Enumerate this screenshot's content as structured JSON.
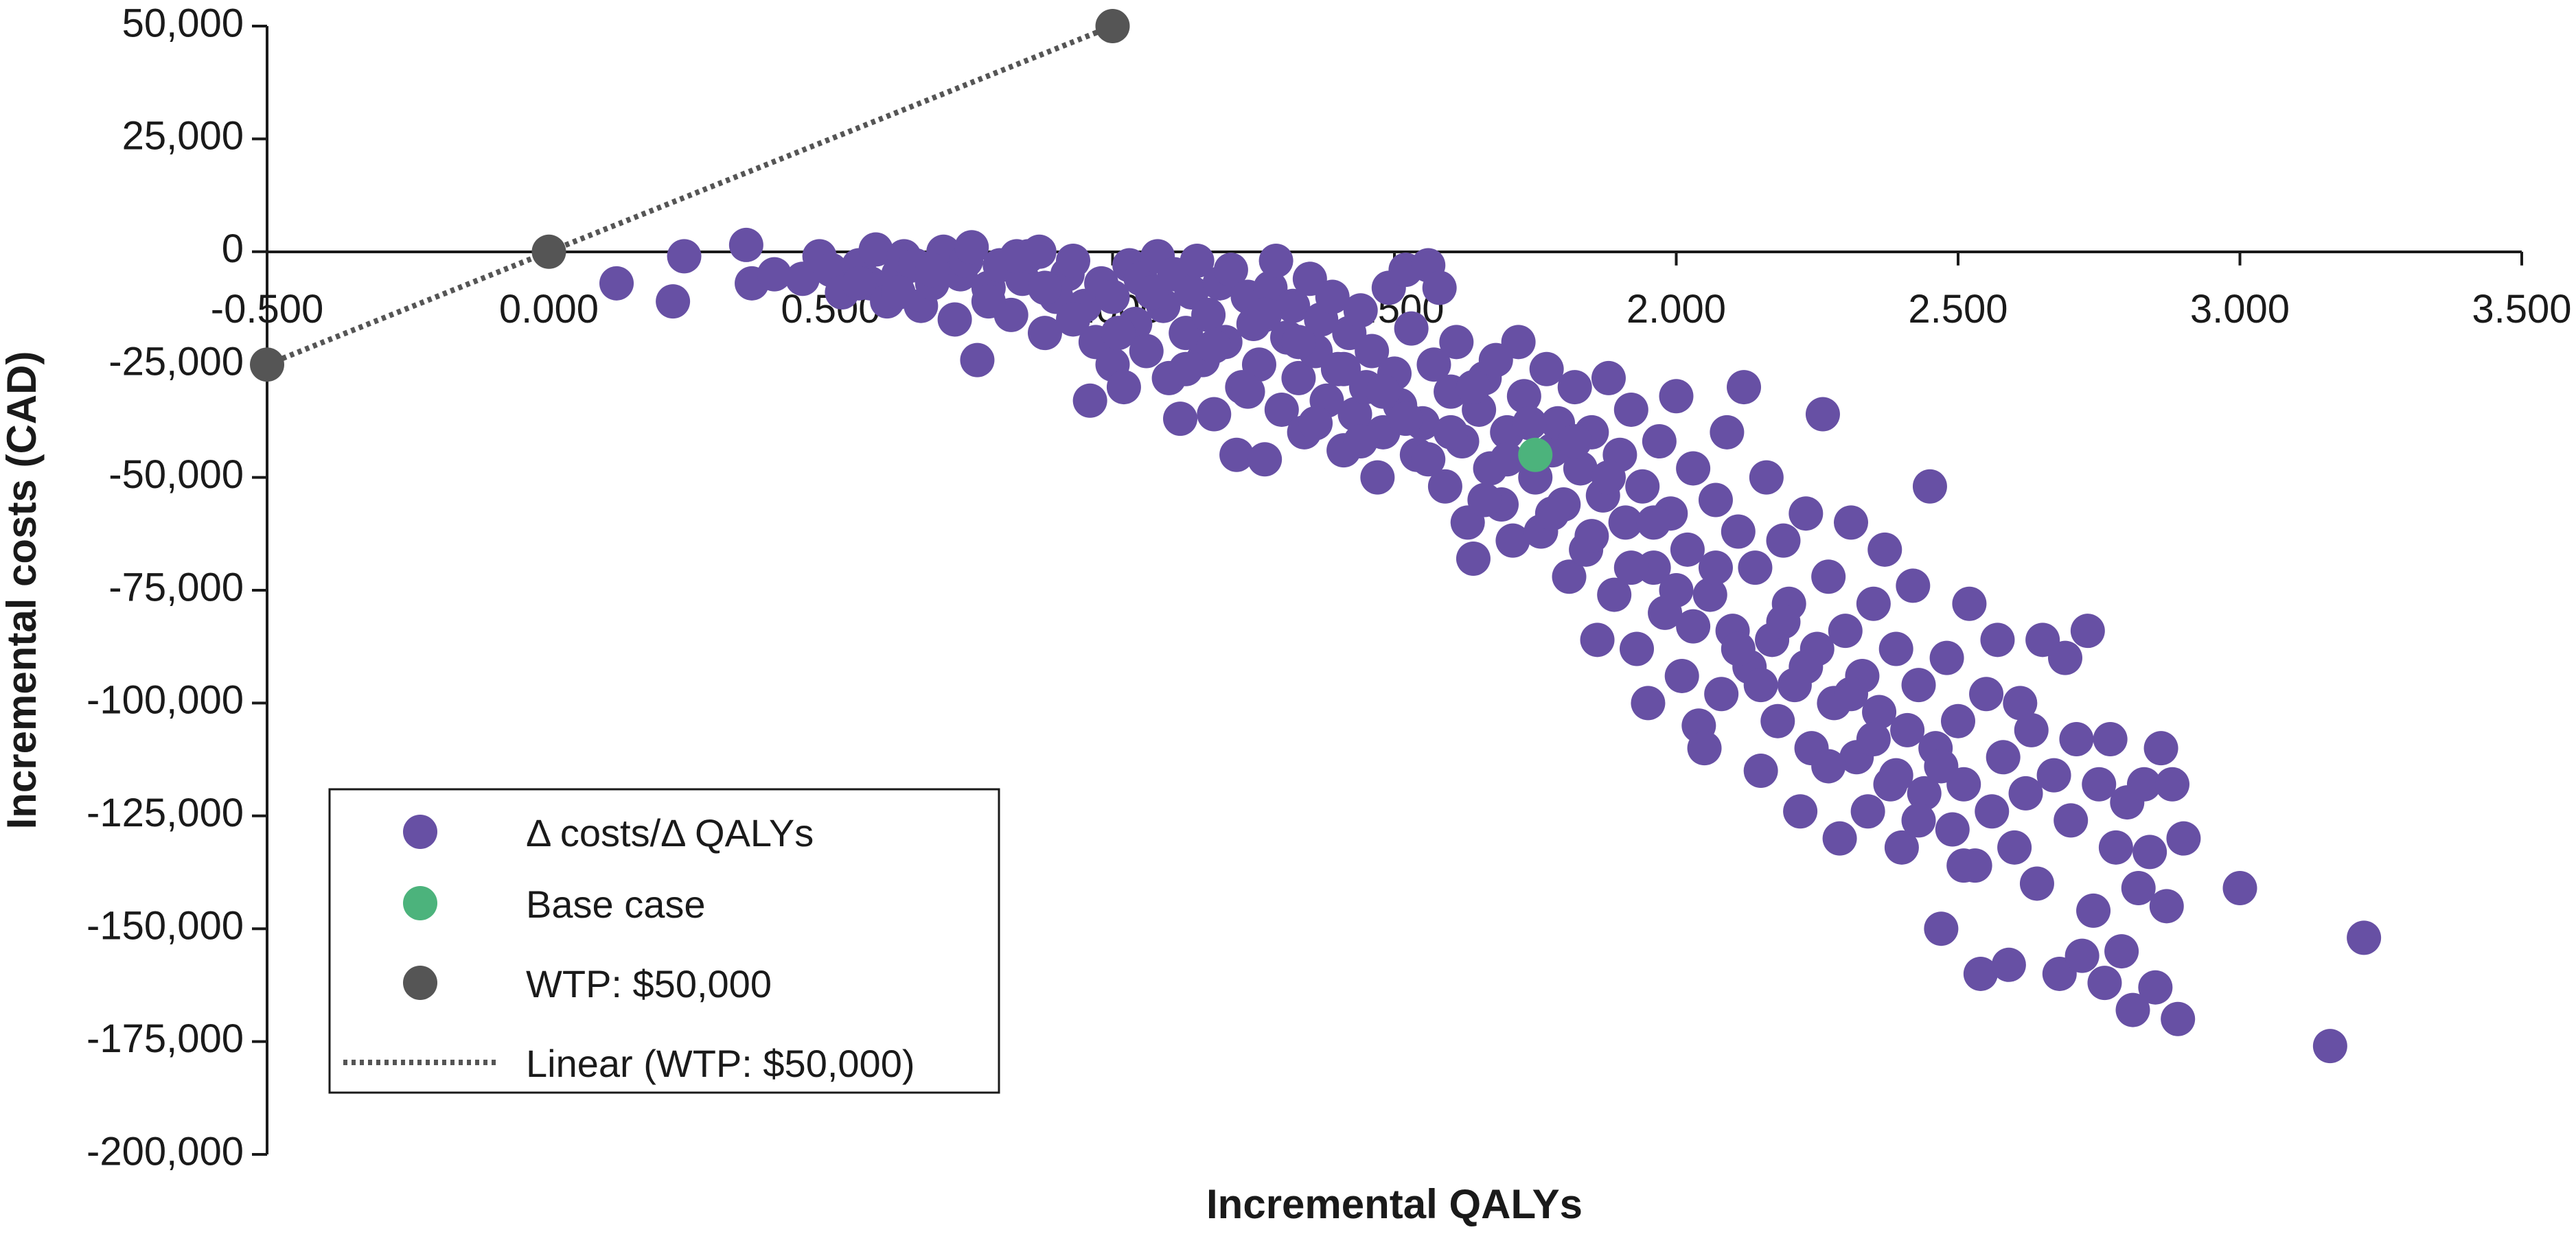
{
  "chart_data": {
    "type": "scatter",
    "xlabel": "Incremental QALYs",
    "ylabel": "Incremental costs (CAD)",
    "xlim": [
      -0.5,
      3.5
    ],
    "ylim": [
      -200000,
      50000
    ],
    "x_ticks": [
      -0.5,
      0,
      0.5,
      1,
      1.5,
      2,
      2.5,
      3,
      3.5
    ],
    "x_tick_labels": [
      "-0.500",
      "0.000",
      "0.500",
      "1.000",
      "1.500",
      "2.000",
      "2.500",
      "3.000",
      "3.500"
    ],
    "y_ticks": [
      50000,
      25000,
      0,
      -25000,
      -50000,
      -75000,
      -100000,
      -125000,
      -150000,
      -175000,
      -200000
    ],
    "y_tick_labels": [
      "50,000",
      "25,000",
      "0",
      "-25,000",
      "-50,000",
      "-75,000",
      "-100,000",
      "-125,000",
      "-150,000",
      "-175,000",
      "-200,000"
    ],
    "colors": {
      "psa": "#6750a4",
      "base": "#4cb37c",
      "wtp": "#555555",
      "axis": "#1a1a1a"
    },
    "legend_position": "bottom-left",
    "series": [
      {
        "name": "Δ costs/Δ QALYs",
        "kind": "scatter",
        "points": [
          [
            0.12,
            -7000
          ],
          [
            0.22,
            -11000
          ],
          [
            0.24,
            -1000
          ],
          [
            0.35,
            1500
          ],
          [
            0.36,
            -7000
          ],
          [
            0.4,
            -5000
          ],
          [
            0.45,
            -6000
          ],
          [
            0.48,
            -1000
          ],
          [
            0.5,
            -4000
          ],
          [
            0.52,
            -9000
          ],
          [
            0.55,
            -3000
          ],
          [
            0.57,
            -7000
          ],
          [
            0.58,
            500
          ],
          [
            0.6,
            -11000
          ],
          [
            0.62,
            -5000
          ],
          [
            0.63,
            -1000
          ],
          [
            0.65,
            -3000
          ],
          [
            0.66,
            -12000
          ],
          [
            0.68,
            -7000
          ],
          [
            0.7,
            0
          ],
          [
            0.72,
            -15000
          ],
          [
            0.73,
            -5000
          ],
          [
            0.74,
            -2000
          ],
          [
            0.75,
            1000
          ],
          [
            0.76,
            -24000
          ],
          [
            0.78,
            -8000
          ],
          [
            0.8,
            -3000
          ],
          [
            0.82,
            -14000
          ],
          [
            0.84,
            -6000
          ],
          [
            0.85,
            -1000
          ],
          [
            0.87,
            0
          ],
          [
            0.88,
            -18000
          ],
          [
            0.9,
            -10000
          ],
          [
            0.92,
            -5000
          ],
          [
            0.93,
            -2000
          ],
          [
            0.95,
            -12000
          ],
          [
            0.96,
            -33000
          ],
          [
            0.97,
            -20000
          ],
          [
            0.98,
            -7000
          ],
          [
            1.0,
            -25000
          ],
          [
            1.0,
            -10000
          ],
          [
            1.02,
            -30000
          ],
          [
            1.03,
            -3000
          ],
          [
            1.04,
            -16000
          ],
          [
            1.05,
            -6000
          ],
          [
            1.06,
            -22000
          ],
          [
            1.08,
            -1000
          ],
          [
            1.09,
            -12000
          ],
          [
            1.1,
            -28000
          ],
          [
            1.11,
            -5000
          ],
          [
            1.12,
            -37000
          ],
          [
            1.13,
            -18000
          ],
          [
            1.14,
            -9000
          ],
          [
            1.15,
            -2000
          ],
          [
            1.16,
            -24000
          ],
          [
            1.17,
            -14000
          ],
          [
            1.18,
            -36000
          ],
          [
            1.19,
            -7000
          ],
          [
            1.2,
            -20000
          ],
          [
            1.21,
            -4000
          ],
          [
            1.22,
            -45000
          ],
          [
            1.23,
            -30000
          ],
          [
            1.24,
            -10000
          ],
          [
            1.25,
            -16000
          ],
          [
            1.26,
            -25000
          ],
          [
            1.27,
            -46000
          ],
          [
            1.28,
            -8000
          ],
          [
            1.29,
            -2000
          ],
          [
            1.3,
            -35000
          ],
          [
            1.31,
            -19000
          ],
          [
            1.32,
            -12000
          ],
          [
            1.33,
            -28000
          ],
          [
            1.34,
            -40000
          ],
          [
            1.35,
            -6000
          ],
          [
            1.36,
            -22000
          ],
          [
            1.37,
            -15000
          ],
          [
            1.38,
            -33000
          ],
          [
            1.39,
            -10000
          ],
          [
            1.4,
            -26000
          ],
          [
            1.41,
            -44000
          ],
          [
            1.42,
            -18000
          ],
          [
            1.43,
            -36000
          ],
          [
            1.44,
            -13000
          ],
          [
            1.45,
            -30000
          ],
          [
            1.46,
            -22000
          ],
          [
            1.47,
            -50000
          ],
          [
            1.48,
            -40000
          ],
          [
            1.49,
            -8000
          ],
          [
            1.5,
            -27000
          ],
          [
            1.51,
            -34000
          ],
          [
            1.52,
            -4000
          ],
          [
            1.53,
            -17000
          ],
          [
            1.54,
            -45000
          ],
          [
            1.55,
            -38000
          ],
          [
            1.56,
            -3000
          ],
          [
            1.57,
            -25000
          ],
          [
            1.58,
            -8000
          ],
          [
            1.59,
            -52000
          ],
          [
            1.6,
            -31000
          ],
          [
            1.61,
            -20000
          ],
          [
            1.62,
            -42000
          ],
          [
            1.63,
            -60000
          ],
          [
            1.64,
            -68000
          ],
          [
            1.65,
            -35000
          ],
          [
            1.66,
            -28000
          ],
          [
            1.67,
            -48000
          ],
          [
            1.68,
            -24000
          ],
          [
            1.69,
            -56000
          ],
          [
            1.7,
            -40000
          ],
          [
            1.71,
            -64000
          ],
          [
            1.72,
            -20000
          ],
          [
            1.73,
            -32000
          ],
          [
            1.75,
            -50000
          ],
          [
            1.76,
            -62000
          ],
          [
            1.77,
            -26000
          ],
          [
            1.78,
            -44000
          ],
          [
            1.79,
            -38000
          ],
          [
            1.8,
            -56000
          ],
          [
            1.81,
            -72000
          ],
          [
            1.82,
            -30000
          ],
          [
            1.83,
            -48000
          ],
          [
            1.84,
            -66000
          ],
          [
            1.85,
            -40000
          ],
          [
            1.86,
            -86000
          ],
          [
            1.87,
            -54000
          ],
          [
            1.88,
            -28000
          ],
          [
            1.89,
            -76000
          ],
          [
            1.9,
            -45000
          ],
          [
            1.91,
            -60000
          ],
          [
            1.92,
            -35000
          ],
          [
            1.93,
            -88000
          ],
          [
            1.94,
            -52000
          ],
          [
            1.95,
            -100000
          ],
          [
            1.96,
            -70000
          ],
          [
            1.97,
            -42000
          ],
          [
            1.98,
            -80000
          ],
          [
            1.99,
            -58000
          ],
          [
            2.0,
            -32000
          ],
          [
            2.01,
            -94000
          ],
          [
            2.02,
            -66000
          ],
          [
            2.03,
            -48000
          ],
          [
            2.04,
            -105000
          ],
          [
            2.05,
            -110000
          ],
          [
            2.06,
            -76000
          ],
          [
            2.07,
            -55000
          ],
          [
            2.08,
            -98000
          ],
          [
            2.09,
            -40000
          ],
          [
            2.1,
            -84000
          ],
          [
            2.11,
            -62000
          ],
          [
            2.12,
            -30000
          ],
          [
            2.13,
            -92000
          ],
          [
            2.14,
            -70000
          ],
          [
            2.15,
            -115000
          ],
          [
            2.16,
            -50000
          ],
          [
            2.17,
            -86000
          ],
          [
            2.18,
            -104000
          ],
          [
            2.19,
            -64000
          ],
          [
            2.2,
            -78000
          ],
          [
            2.21,
            -96000
          ],
          [
            2.22,
            -124000
          ],
          [
            2.23,
            -58000
          ],
          [
            2.24,
            -110000
          ],
          [
            2.25,
            -88000
          ],
          [
            2.26,
            -36000
          ],
          [
            2.27,
            -72000
          ],
          [
            2.28,
            -100000
          ],
          [
            2.29,
            -130000
          ],
          [
            2.3,
            -84000
          ],
          [
            2.31,
            -60000
          ],
          [
            2.32,
            -112000
          ],
          [
            2.33,
            -94000
          ],
          [
            2.34,
            -124000
          ],
          [
            2.35,
            -78000
          ],
          [
            2.36,
            -102000
          ],
          [
            2.37,
            -66000
          ],
          [
            2.38,
            -118000
          ],
          [
            2.39,
            -88000
          ],
          [
            2.4,
            -132000
          ],
          [
            2.41,
            -106000
          ],
          [
            2.42,
            -74000
          ],
          [
            2.43,
            -96000
          ],
          [
            2.44,
            -120000
          ],
          [
            2.45,
            -52000
          ],
          [
            2.46,
            -110000
          ],
          [
            2.47,
            -150000
          ],
          [
            2.48,
            -90000
          ],
          [
            2.49,
            -128000
          ],
          [
            2.5,
            -104000
          ],
          [
            2.51,
            -118000
          ],
          [
            2.52,
            -78000
          ],
          [
            2.53,
            -136000
          ],
          [
            2.54,
            -160000
          ],
          [
            2.55,
            -98000
          ],
          [
            2.56,
            -124000
          ],
          [
            2.57,
            -86000
          ],
          [
            2.58,
            -112000
          ],
          [
            2.59,
            -158000
          ],
          [
            2.6,
            -132000
          ],
          [
            2.61,
            -100000
          ],
          [
            2.62,
            -120000
          ],
          [
            2.63,
            -106000
          ],
          [
            2.64,
            -140000
          ],
          [
            2.65,
            -86000
          ],
          [
            2.67,
            -116000
          ],
          [
            2.68,
            -160000
          ],
          [
            2.69,
            -90000
          ],
          [
            2.7,
            -126000
          ],
          [
            2.71,
            -108000
          ],
          [
            2.72,
            -156000
          ],
          [
            2.73,
            -84000
          ],
          [
            2.74,
            -146000
          ],
          [
            2.75,
            -118000
          ],
          [
            2.76,
            -162000
          ],
          [
            2.77,
            -108000
          ],
          [
            2.78,
            -132000
          ],
          [
            2.79,
            -155000
          ],
          [
            2.8,
            -122000
          ],
          [
            2.81,
            -168000
          ],
          [
            2.82,
            -141000
          ],
          [
            2.83,
            -118000
          ],
          [
            2.84,
            -133000
          ],
          [
            2.85,
            -163000
          ],
          [
            2.86,
            -110000
          ],
          [
            2.87,
            -145000
          ],
          [
            2.88,
            -118000
          ],
          [
            2.89,
            -170000
          ],
          [
            2.9,
            -130000
          ],
          [
            3.0,
            -141000
          ],
          [
            3.16,
            -176000
          ],
          [
            3.22,
            -152000
          ],
          [
            0.55,
            -7000
          ],
          [
            0.62,
            -9000
          ],
          [
            0.68,
            -4000
          ],
          [
            0.78,
            -11000
          ],
          [
            0.83,
            -1000
          ],
          [
            0.88,
            -8000
          ],
          [
            0.93,
            -15000
          ],
          [
            1.01,
            -18000
          ],
          [
            1.07,
            -9000
          ],
          [
            1.13,
            -26000
          ],
          [
            1.18,
            -21000
          ],
          [
            1.24,
            -31000
          ],
          [
            1.27,
            -14000
          ],
          [
            1.33,
            -20000
          ],
          [
            1.36,
            -38000
          ],
          [
            1.41,
            -26000
          ],
          [
            1.44,
            -42000
          ],
          [
            1.48,
            -31000
          ],
          [
            1.52,
            -37000
          ],
          [
            1.56,
            -46000
          ],
          [
            1.6,
            -40000
          ],
          [
            1.64,
            -30000
          ],
          [
            1.66,
            -55000
          ],
          [
            1.7,
            -46000
          ],
          [
            1.74,
            -38000
          ],
          [
            1.78,
            -58000
          ],
          [
            1.82,
            -42000
          ],
          [
            1.85,
            -63000
          ],
          [
            1.88,
            -50000
          ],
          [
            1.92,
            -70000
          ],
          [
            1.96,
            -60000
          ],
          [
            2.0,
            -75000
          ],
          [
            2.03,
            -83000
          ],
          [
            2.07,
            -70000
          ],
          [
            2.11,
            -88000
          ],
          [
            2.15,
            -96000
          ],
          [
            2.19,
            -82000
          ],
          [
            2.23,
            -92000
          ],
          [
            2.27,
            -114000
          ],
          [
            2.31,
            -98000
          ],
          [
            2.35,
            -108000
          ],
          [
            2.39,
            -116000
          ],
          [
            2.43,
            -126000
          ],
          [
            2.47,
            -114000
          ],
          [
            2.51,
            -136000
          ]
        ]
      },
      {
        "name": "Base case",
        "kind": "scatter",
        "points": [
          [
            1.75,
            -45000
          ]
        ]
      },
      {
        "name": "WTP: $50,000",
        "kind": "scatter",
        "points": [
          [
            -0.5,
            -25000
          ],
          [
            0,
            0
          ],
          [
            1,
            50000
          ]
        ]
      },
      {
        "name": "Linear (WTP: $50,000)",
        "kind": "line",
        "points": [
          [
            -0.5,
            -25000
          ],
          [
            1,
            50000
          ]
        ]
      }
    ]
  }
}
